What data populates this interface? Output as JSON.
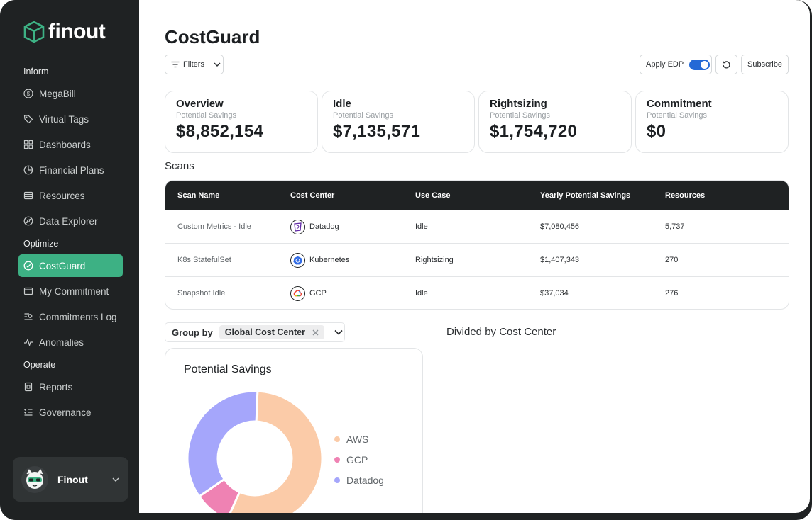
{
  "app": {
    "name": "finout"
  },
  "sidebar": {
    "sections": [
      {
        "title": "Inform"
      },
      {
        "title": "Optimize"
      },
      {
        "title": "Operate"
      }
    ],
    "items": [
      {
        "label": "MegaBill",
        "icon": "dollar-circle-icon"
      },
      {
        "label": "Virtual Tags",
        "icon": "tag-icon"
      },
      {
        "label": "Dashboards",
        "icon": "dashboard-grid-icon"
      },
      {
        "label": "Financial Plans",
        "icon": "pie-chart-icon"
      },
      {
        "label": "Resources",
        "icon": "server-icon"
      },
      {
        "label": "Data Explorer",
        "icon": "compass-icon"
      },
      {
        "label": "CostGuard",
        "icon": "shield-check-icon",
        "active": true
      },
      {
        "label": "My Commitment",
        "icon": "wallet-icon"
      },
      {
        "label": "Commitments Log",
        "icon": "list-search-icon"
      },
      {
        "label": "Anomalies",
        "icon": "pulse-icon"
      },
      {
        "label": "Reports",
        "icon": "report-icon"
      },
      {
        "label": "Governance",
        "icon": "checklist-icon"
      }
    ],
    "user": {
      "name": "Finout",
      "icon": "cat-avatar-icon"
    }
  },
  "header": {
    "title": "CostGuard",
    "filters_label": "Filters",
    "edp_label": "Apply EDP",
    "edp_enabled": true,
    "subscribe_label": "Subscribe"
  },
  "cards": [
    {
      "title": "Overview",
      "subtitle": "Potential Savings",
      "value": "$8,852,154"
    },
    {
      "title": "Idle",
      "subtitle": "Potential Savings",
      "value": "$7,135,571"
    },
    {
      "title": "Rightsizing",
      "subtitle": "Potential Savings",
      "value": "$1,754,720"
    },
    {
      "title": "Commitment",
      "subtitle": "Potential Savings",
      "value": "$0"
    }
  ],
  "scans": {
    "label": "Scans",
    "columns": [
      "Scan Name",
      "Cost Center",
      "Use Case",
      "Yearly Potential Savings",
      "Resources"
    ],
    "rows": [
      {
        "name": "Custom Metrics - Idle",
        "cost_center": "Datadog",
        "icon": "datadog-icon",
        "use_case": "Idle",
        "savings": "$7,080,456",
        "resources": "5,737"
      },
      {
        "name": "K8s StatefulSet",
        "cost_center": "Kubernetes",
        "icon": "kubernetes-icon",
        "use_case": "Rightsizing",
        "savings": "$1,407,343",
        "resources": "270"
      },
      {
        "name": "Snapshot Idle",
        "cost_center": "GCP",
        "icon": "gcp-icon",
        "use_case": "Idle",
        "savings": "$37,034",
        "resources": "276"
      }
    ]
  },
  "group_by": {
    "label": "Group by",
    "value": "Global Cost Center"
  },
  "divided_label": "Divided by Cost Center",
  "colors": {
    "accent": "#3db184",
    "toggle": "#2469d6",
    "aws": "#fbcba8",
    "gcp": "#ef82b3",
    "datadog": "#a5a6fb"
  },
  "chart_data": {
    "type": "pie",
    "title": "Potential Savings",
    "categories": [
      "AWS",
      "GCP",
      "Datadog"
    ],
    "values": [
      0.561,
      0.087,
      0.352
    ],
    "colors": [
      "#fbcba8",
      "#ef82b3",
      "#a5a6fb"
    ]
  }
}
